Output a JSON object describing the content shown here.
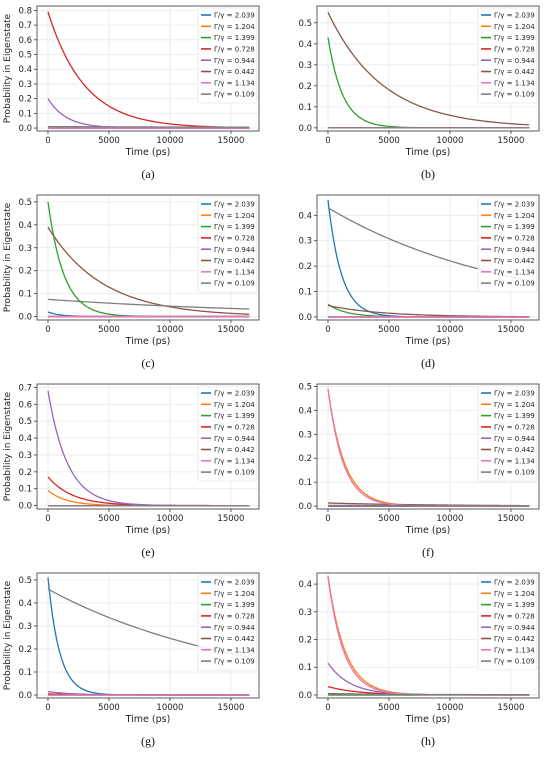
{
  "figure": {
    "ylabel": "Probability in Eigenstate",
    "xlabel": "Time (ps)"
  },
  "chart_data": [
    {
      "type": "line",
      "caption": "(a)",
      "xlabel": "Time (ps)",
      "ylabel": "Probability in Eigenstate",
      "xlim": [
        -900,
        17300
      ],
      "ylim": [
        -0.02,
        0.83
      ],
      "xticks": [
        0,
        5000,
        10000,
        15000
      ],
      "xtick_labels": [
        "0",
        "5000",
        "10000",
        "15000"
      ],
      "yticks": [
        0.0,
        0.1,
        0.2,
        0.3,
        0.4,
        0.5,
        0.6,
        0.7,
        0.8
      ],
      "ytick_labels": [
        "0.0",
        "0.1",
        "0.2",
        "0.3",
        "0.4",
        "0.5",
        "0.6",
        "0.7",
        "0.8"
      ],
      "legend_position": "top-right",
      "grid": true,
      "x_range": [
        0,
        16500
      ],
      "series": [
        {
          "name": "Γ/γ = 2.039",
          "color": "#1f77b4",
          "y0": 0.0,
          "tau": 3000
        },
        {
          "name": "Γ/γ = 1.204",
          "color": "#ff7f0e",
          "y0": 0.0,
          "tau": 3000
        },
        {
          "name": "Γ/γ = 1.399",
          "color": "#2ca02c",
          "y0": 0.01,
          "tau": 4000
        },
        {
          "name": "Γ/γ = 0.728",
          "color": "#d62728",
          "y0": 0.79,
          "tau": 3000
        },
        {
          "name": "Γ/γ = 0.944",
          "color": "#9467bd",
          "y0": 0.2,
          "tau": 1500
        },
        {
          "name": "Γ/γ = 0.442",
          "color": "#8c564b",
          "y0": 0.0,
          "tau": 3000
        },
        {
          "name": "Γ/γ = 1.134",
          "color": "#e377c2",
          "y0": 0.0,
          "tau": 3000
        },
        {
          "name": "Γ/γ = 0.109",
          "color": "#7f7f7f",
          "y0": 0.01,
          "tau": 30000
        }
      ]
    },
    {
      "type": "line",
      "caption": "(b)",
      "xlabel": "Time (ps)",
      "ylabel": "",
      "xlim": [
        -900,
        17300
      ],
      "ylim": [
        -0.015,
        0.58
      ],
      "xticks": [
        0,
        5000,
        10000,
        15000
      ],
      "xtick_labels": [
        "0",
        "5000",
        "10000",
        "15000"
      ],
      "yticks": [
        0.0,
        0.1,
        0.2,
        0.3,
        0.4,
        0.5
      ],
      "ytick_labels": [
        "0.0",
        "0.1",
        "0.2",
        "0.3",
        "0.4",
        "0.5"
      ],
      "legend_position": "top-right",
      "grid": true,
      "x_range": [
        0,
        16500
      ],
      "series": [
        {
          "name": "Γ/γ = 2.039",
          "color": "#1f77b4",
          "y0": 0.0,
          "tau": 3000
        },
        {
          "name": "Γ/γ = 1.204",
          "color": "#ff7f0e",
          "y0": 0.0,
          "tau": 3000
        },
        {
          "name": "Γ/γ = 1.399",
          "color": "#2ca02c",
          "y0": 0.43,
          "tau": 1200
        },
        {
          "name": "Γ/γ = 0.728",
          "color": "#d62728",
          "y0": 0.0,
          "tau": 3000
        },
        {
          "name": "Γ/γ = 0.944",
          "color": "#9467bd",
          "y0": 0.0,
          "tau": 3000
        },
        {
          "name": "Γ/γ = 0.442",
          "color": "#8c564b",
          "y0": 0.55,
          "tau": 4500
        },
        {
          "name": "Γ/γ = 1.134",
          "color": "#e377c2",
          "y0": 0.0,
          "tau": 3000
        },
        {
          "name": "Γ/γ = 0.109",
          "color": "#7f7f7f",
          "y0": 0.0,
          "tau": 3000
        }
      ]
    },
    {
      "type": "line",
      "caption": "(c)",
      "xlabel": "Time (ps)",
      "ylabel": "Probability in Eigenstate",
      "xlim": [
        -900,
        17300
      ],
      "ylim": [
        -0.015,
        0.53
      ],
      "xticks": [
        0,
        5000,
        10000,
        15000
      ],
      "xtick_labels": [
        "0",
        "5000",
        "10000",
        "15000"
      ],
      "yticks": [
        0.0,
        0.1,
        0.2,
        0.3,
        0.4,
        0.5
      ],
      "ytick_labels": [
        "0.0",
        "0.1",
        "0.2",
        "0.3",
        "0.4",
        "0.5"
      ],
      "legend_position": "top-right",
      "grid": true,
      "x_range": [
        0,
        16500
      ],
      "series": [
        {
          "name": "Γ/γ = 2.039",
          "color": "#1f77b4",
          "y0": 0.02,
          "tau": 1000
        },
        {
          "name": "Γ/γ = 1.204",
          "color": "#ff7f0e",
          "y0": 0.0,
          "tau": 3000
        },
        {
          "name": "Γ/γ = 1.399",
          "color": "#2ca02c",
          "y0": 0.5,
          "tau": 1300
        },
        {
          "name": "Γ/γ = 0.728",
          "color": "#d62728",
          "y0": 0.0,
          "tau": 3000
        },
        {
          "name": "Γ/γ = 0.944",
          "color": "#9467bd",
          "y0": 0.0,
          "tau": 3000
        },
        {
          "name": "Γ/γ = 0.442",
          "color": "#8c564b",
          "y0": 0.39,
          "tau": 4500
        },
        {
          "name": "Γ/γ = 1.134",
          "color": "#e377c2",
          "y0": 0.0,
          "tau": 3000
        },
        {
          "name": "Γ/γ = 0.109",
          "color": "#7f7f7f",
          "y0": 0.075,
          "tau": 20000
        }
      ]
    },
    {
      "type": "line",
      "caption": "(d)",
      "xlabel": "Time (ps)",
      "ylabel": "",
      "xlim": [
        -900,
        17300
      ],
      "ylim": [
        -0.012,
        0.48
      ],
      "xticks": [
        0,
        5000,
        10000,
        15000
      ],
      "xtick_labels": [
        "0",
        "5000",
        "10000",
        "15000"
      ],
      "yticks": [
        0.0,
        0.1,
        0.2,
        0.3,
        0.4
      ],
      "ytick_labels": [
        "0.0",
        "0.1",
        "0.2",
        "0.3",
        "0.4"
      ],
      "legend_position": "top-right",
      "grid": true,
      "x_range": [
        0,
        16500
      ],
      "series": [
        {
          "name": "Γ/γ = 2.039",
          "color": "#1f77b4",
          "y0": 0.46,
          "tau": 1100
        },
        {
          "name": "Γ/γ = 1.204",
          "color": "#ff7f0e",
          "y0": 0.0,
          "tau": 3000
        },
        {
          "name": "Γ/γ = 1.399",
          "color": "#2ca02c",
          "y0": 0.05,
          "tau": 1500
        },
        {
          "name": "Γ/γ = 0.728",
          "color": "#d62728",
          "y0": 0.0,
          "tau": 3000
        },
        {
          "name": "Γ/γ = 0.944",
          "color": "#9467bd",
          "y0": 0.0,
          "tau": 3000
        },
        {
          "name": "Γ/γ = 0.442",
          "color": "#8c564b",
          "y0": 0.045,
          "tau": 4500
        },
        {
          "name": "Γ/γ = 1.134",
          "color": "#e377c2",
          "y0": 0.0,
          "tau": 3000
        },
        {
          "name": "Γ/γ = 0.109",
          "color": "#7f7f7f",
          "y0": 0.43,
          "tau": 15000
        }
      ]
    },
    {
      "type": "line",
      "caption": "(e)",
      "xlabel": "Time (ps)",
      "ylabel": "Probability in Eigenstate",
      "xlim": [
        -900,
        17300
      ],
      "ylim": [
        -0.02,
        0.72
      ],
      "xticks": [
        0,
        5000,
        10000,
        15000
      ],
      "xtick_labels": [
        "0",
        "5000",
        "10000",
        "15000"
      ],
      "yticks": [
        0.0,
        0.1,
        0.2,
        0.3,
        0.4,
        0.5,
        0.6,
        0.7
      ],
      "ytick_labels": [
        "0.0",
        "0.1",
        "0.2",
        "0.3",
        "0.4",
        "0.5",
        "0.6",
        "0.7"
      ],
      "legend_position": "top-right",
      "grid": true,
      "x_range": [
        0,
        16500
      ],
      "series": [
        {
          "name": "Γ/γ = 2.039",
          "color": "#1f77b4",
          "y0": 0.0,
          "tau": 3000
        },
        {
          "name": "Γ/γ = 1.204",
          "color": "#ff7f0e",
          "y0": 0.09,
          "tau": 1500
        },
        {
          "name": "Γ/γ = 1.399",
          "color": "#2ca02c",
          "y0": 0.0,
          "tau": 3000
        },
        {
          "name": "Γ/γ = 0.728",
          "color": "#d62728",
          "y0": 0.17,
          "tau": 2000
        },
        {
          "name": "Γ/γ = 0.944",
          "color": "#9467bd",
          "y0": 0.68,
          "tau": 1600
        },
        {
          "name": "Γ/γ = 0.442",
          "color": "#8c564b",
          "y0": 0.0,
          "tau": 3000
        },
        {
          "name": "Γ/γ = 1.134",
          "color": "#e377c2",
          "y0": 0.0,
          "tau": 3000
        },
        {
          "name": "Γ/γ = 0.109",
          "color": "#7f7f7f",
          "y0": 0.0,
          "tau": 3000
        }
      ]
    },
    {
      "type": "line",
      "caption": "(f)",
      "xlabel": "Time (ps)",
      "ylabel": "",
      "xlim": [
        -900,
        17300
      ],
      "ylim": [
        -0.012,
        0.51
      ],
      "xticks": [
        0,
        5000,
        10000,
        15000
      ],
      "xtick_labels": [
        "0",
        "5000",
        "10000",
        "15000"
      ],
      "yticks": [
        0.0,
        0.1,
        0.2,
        0.3,
        0.4,
        0.5
      ],
      "ytick_labels": [
        "0.0",
        "0.1",
        "0.2",
        "0.3",
        "0.4",
        "0.5"
      ],
      "legend_position": "top-right",
      "grid": true,
      "x_range": [
        0,
        16500
      ],
      "series": [
        {
          "name": "Γ/γ = 2.039",
          "color": "#1f77b4",
          "y0": 0.0,
          "tau": 3000
        },
        {
          "name": "Γ/γ = 1.204",
          "color": "#ff7f0e",
          "y0": 0.49,
          "tau": 1350
        },
        {
          "name": "Γ/γ = 1.399",
          "color": "#2ca02c",
          "y0": 0.0,
          "tau": 3000
        },
        {
          "name": "Γ/γ = 0.728",
          "color": "#d62728",
          "y0": 0.0,
          "tau": 3000
        },
        {
          "name": "Γ/γ = 0.944",
          "color": "#9467bd",
          "y0": 0.0,
          "tau": 3000
        },
        {
          "name": "Γ/γ = 0.442",
          "color": "#8c564b",
          "y0": 0.013,
          "tau": 9000
        },
        {
          "name": "Γ/γ = 1.134",
          "color": "#e377c2",
          "y0": 0.49,
          "tau": 1250
        },
        {
          "name": "Γ/γ = 0.109",
          "color": "#7f7f7f",
          "y0": 0.003,
          "tau": 30000
        }
      ]
    },
    {
      "type": "line",
      "caption": "(g)",
      "xlabel": "Time (ps)",
      "ylabel": "Probability in Eigenstate",
      "xlim": [
        -900,
        17300
      ],
      "ylim": [
        -0.013,
        0.53
      ],
      "xticks": [
        0,
        5000,
        10000,
        15000
      ],
      "xtick_labels": [
        "0",
        "5000",
        "10000",
        "15000"
      ],
      "yticks": [
        0.0,
        0.1,
        0.2,
        0.3,
        0.4,
        0.5
      ],
      "ytick_labels": [
        "0.0",
        "0.1",
        "0.2",
        "0.3",
        "0.4",
        "0.5"
      ],
      "legend_position": "top-right",
      "grid": true,
      "x_range": [
        0,
        16500
      ],
      "series": [
        {
          "name": "Γ/γ = 2.039",
          "color": "#1f77b4",
          "y0": 0.51,
          "tau": 950
        },
        {
          "name": "Γ/γ = 1.204",
          "color": "#ff7f0e",
          "y0": 0.0,
          "tau": 3000
        },
        {
          "name": "Γ/γ = 1.399",
          "color": "#2ca02c",
          "y0": 0.0,
          "tau": 3000
        },
        {
          "name": "Γ/γ = 0.728",
          "color": "#d62728",
          "y0": 0.005,
          "tau": 3000
        },
        {
          "name": "Γ/γ = 0.944",
          "color": "#9467bd",
          "y0": 0.015,
          "tau": 2000
        },
        {
          "name": "Γ/γ = 0.442",
          "color": "#8c564b",
          "y0": 0.0,
          "tau": 3000
        },
        {
          "name": "Γ/γ = 1.134",
          "color": "#e377c2",
          "y0": 0.0,
          "tau": 3000
        },
        {
          "name": "Γ/γ = 0.109",
          "color": "#7f7f7f",
          "y0": 0.46,
          "tau": 16000
        }
      ]
    },
    {
      "type": "line",
      "caption": "(h)",
      "xlabel": "Time (ps)",
      "ylabel": "",
      "xlim": [
        -900,
        17300
      ],
      "ylim": [
        -0.011,
        0.44
      ],
      "xticks": [
        0,
        5000,
        10000,
        15000
      ],
      "xtick_labels": [
        "0",
        "5000",
        "10000",
        "15000"
      ],
      "yticks": [
        0.0,
        0.1,
        0.2,
        0.3,
        0.4
      ],
      "ytick_labels": [
        "0.0",
        "0.1",
        "0.2",
        "0.3",
        "0.4"
      ],
      "legend_position": "top-right",
      "grid": true,
      "x_range": [
        0,
        16500
      ],
      "series": [
        {
          "name": "Γ/γ = 2.039",
          "color": "#1f77b4",
          "y0": 0.0,
          "tau": 3000
        },
        {
          "name": "Γ/γ = 1.204",
          "color": "#ff7f0e",
          "y0": 0.43,
          "tau": 1400
        },
        {
          "name": "Γ/γ = 1.399",
          "color": "#2ca02c",
          "y0": 0.0,
          "tau": 3000
        },
        {
          "name": "Γ/γ = 0.728",
          "color": "#d62728",
          "y0": 0.03,
          "tau": 2500
        },
        {
          "name": "Γ/γ = 0.944",
          "color": "#9467bd",
          "y0": 0.115,
          "tau": 1800
        },
        {
          "name": "Γ/γ = 0.442",
          "color": "#8c564b",
          "y0": 0.005,
          "tau": 6000
        },
        {
          "name": "Γ/γ = 1.134",
          "color": "#e377c2",
          "y0": 0.425,
          "tau": 1300
        },
        {
          "name": "Γ/γ = 0.109",
          "color": "#7f7f7f",
          "y0": 0.002,
          "tau": 30000
        }
      ]
    }
  ]
}
